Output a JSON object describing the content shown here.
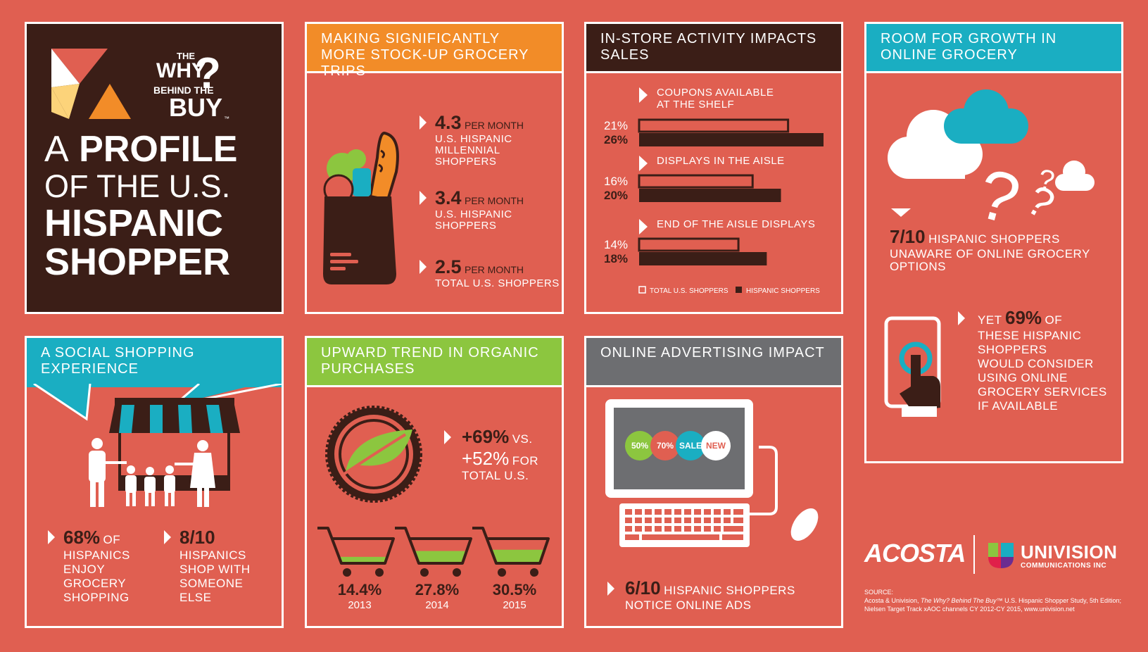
{
  "brand": {
    "logo": {
      "line1": "THE",
      "line2": "WHY",
      "line3": "BEHIND THE",
      "line4": "BUY",
      "tm": "™"
    },
    "title": {
      "line1_a": "A",
      "line1_b": "PROFILE",
      "line2": "OF THE U.S.",
      "line3": "HISPANIC",
      "line4": "SHOPPER"
    }
  },
  "trips": {
    "header": "Making significantly more stock-up grocery trips",
    "items": [
      {
        "value": "4.3",
        "unit": "PER MONTH",
        "label1": "U.S. HISPANIC",
        "label2": "MILLENNIAL",
        "label3": "SHOPPERS"
      },
      {
        "value": "3.4",
        "unit": "PER MONTH",
        "label1": "U.S. HISPANIC",
        "label2": "SHOPPERS"
      },
      {
        "value": "2.5",
        "unit": "PER MONTH",
        "label1": "TOTAL U.S. SHOPPERS"
      }
    ],
    "icon": "grocery-bag-icon"
  },
  "instore": {
    "header": "In-store activity impacts sales",
    "legend": {
      "total": "TOTAL U.S. SHOPPERS",
      "hispanic": "HISPANIC SHOPPERS"
    }
  },
  "chart_data": {
    "type": "bar",
    "categories": [
      "COUPONS AVAILABLE AT THE SHELF",
      "DISPLAYS IN THE AISLE",
      "END OF THE AISLE DISPLAYS"
    ],
    "category_lines": [
      [
        "COUPONS AVAILABLE",
        "AT THE SHELF"
      ],
      [
        "DISPLAYS IN THE AISLE"
      ],
      [
        "END OF THE AISLE DISPLAYS"
      ]
    ],
    "series": [
      {
        "name": "TOTAL U.S. SHOPPERS",
        "values": [
          21,
          16,
          14
        ],
        "labels": [
          "21%",
          "16%",
          "14%"
        ]
      },
      {
        "name": "HISPANIC SHOPPERS",
        "values": [
          26,
          20,
          18
        ],
        "labels": [
          "26%",
          "20%",
          "18%"
        ]
      }
    ],
    "xlim": [
      0,
      26
    ],
    "orientation": "horizontal",
    "colors": {
      "total": "#e05f51",
      "hispanic": "#3b1e17"
    }
  },
  "online": {
    "header": "Room for growth in online grocery",
    "stat1": {
      "value": "7/10",
      "text1": "HISPANIC SHOPPERS",
      "text2": "UNAWARE OF ONLINE GROCERY",
      "text3": "OPTIONS"
    },
    "stat2": {
      "pre": "YET",
      "value": "69%",
      "text1": "OF",
      "text2": "THESE HISPANIC",
      "text3": "SHOPPERS",
      "text4": "WOULD CONSIDER",
      "text5": "USING ONLINE",
      "text6": "GROCERY SERVICES",
      "text7": "IF AVAILABLE"
    }
  },
  "social": {
    "header": "A social shopping experience",
    "stat1": {
      "value": "68%",
      "of": "OF",
      "text1": "HISPANICS",
      "text2": "ENJOY",
      "text3": "GROCERY",
      "text4": "SHOPPING"
    },
    "stat2": {
      "value": "8/10",
      "text1": "HISPANICS",
      "text2": "SHOP WITH",
      "text3": "SOMEONE",
      "text4": "ELSE"
    }
  },
  "organic": {
    "header": "Upward trend in organic purchases",
    "main": {
      "value": "+69%",
      "vs": "VS.",
      "value2": "+52%",
      "for": "FOR",
      "total": "TOTAL U.S."
    },
    "years": [
      {
        "pct": "14.4%",
        "year": "2013",
        "fill": 0.144
      },
      {
        "pct": "27.8%",
        "year": "2014",
        "fill": 0.278
      },
      {
        "pct": "30.5%",
        "year": "2015",
        "fill": 0.305
      }
    ]
  },
  "advertising": {
    "header": "Online advertising impact",
    "badges": [
      "50%",
      "70%",
      "SALE",
      "NEW"
    ],
    "stat": {
      "value": "6/10",
      "text1": "HISPANIC SHOPPERS",
      "text2": "NOTICE ONLINE ADS"
    }
  },
  "footer": {
    "acosta": "ACOSTA",
    "univision": "UNIVISION",
    "univision_sub": "COMMUNICATIONS INC",
    "source_label": "SOURCE:",
    "source1a": "Acosta & Univision, ",
    "source1b": "The Why? Behind The Buy™",
    "source1c": " U.S. Hispanic Shopper Study, 5th Edition;",
    "source2": "Nielsen Target Track xAOC channels CY 2012-CY 2015, www.univision.net"
  },
  "colors": {
    "bg": "#e05f51",
    "brown": "#3b1e17",
    "orange": "#f28c28",
    "teal": "#1aaec2",
    "green": "#8cc63f",
    "gray": "#6d6e71"
  }
}
